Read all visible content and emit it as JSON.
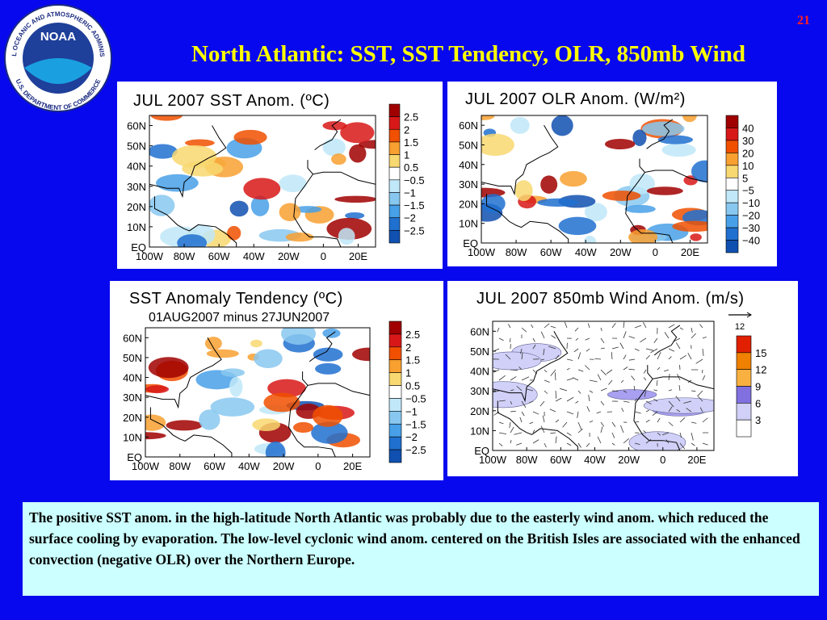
{
  "logo": {
    "name": "NOAA",
    "ring_top": "NATIONAL OCEANIC AND ATMOSPHERIC ADMINISTRATION",
    "ring_bottom": "U.S. DEPARTMENT OF COMMERCE"
  },
  "slide_number": "21",
  "title": "North Atlantic: SST, SST Tendency, OLR, 850mb Wind",
  "panels": [
    {
      "title": "JUL 2007 SST Anom. (ºC)",
      "lat_labels": [
        "60N",
        "50N",
        "40N",
        "30N",
        "20N",
        "10N",
        "EQ"
      ],
      "lon_labels": [
        "100W",
        "80W",
        "60W",
        "40W",
        "20W",
        "0",
        "20E"
      ],
      "colorbar_labels": [
        "2.5",
        "2",
        "1.5",
        "1",
        "0.5",
        "−0.5",
        "−1",
        "−1.5",
        "−2",
        "−2.5"
      ]
    },
    {
      "title": "JUL 2007 OLR Anom. (W/m²)",
      "lat_labels": [
        "60N",
        "50N",
        "40N",
        "30N",
        "20N",
        "10N",
        "EQ"
      ],
      "lon_labels": [
        "100W",
        "80W",
        "60W",
        "40W",
        "20W",
        "0",
        "20E"
      ],
      "colorbar_labels": [
        "40",
        "30",
        "20",
        "10",
        "5",
        "−5",
        "−10",
        "−20",
        "−30",
        "−40"
      ]
    },
    {
      "title": "SST Anomaly Tendency (ºC)",
      "subtitle": "01AUG2007 minus 27JUN2007",
      "lat_labels": [
        "60N",
        "50N",
        "40N",
        "30N",
        "20N",
        "10N",
        "EQ"
      ],
      "lon_labels": [
        "100W",
        "80W",
        "60W",
        "40W",
        "20W",
        "0",
        "20E"
      ],
      "colorbar_labels": [
        "2.5",
        "2",
        "1.5",
        "1",
        "0.5",
        "−0.5",
        "−1",
        "−1.5",
        "−2",
        "−2.5"
      ]
    },
    {
      "title": "JUL 2007 850mb Wind Anom. (m/s)",
      "reference_vector": "12",
      "lat_labels": [
        "60N",
        "50N",
        "40N",
        "30N",
        "20N",
        "10N",
        "EQ"
      ],
      "lon_labels": [
        "100W",
        "80W",
        "60W",
        "40W",
        "20W",
        "0",
        "20E"
      ],
      "colorbar_labels": [
        "15",
        "12",
        "9",
        "6",
        "3"
      ]
    }
  ],
  "caption": "The positive SST anom. in the high-latitude North Atlantic was probably due to the easterly wind anom. which reduced the surface cooling by evaporation. The low-level cyclonic wind anom. centered on the British Isles are associated with the enhanced convection (negative OLR) over the Northern Europe."
}
